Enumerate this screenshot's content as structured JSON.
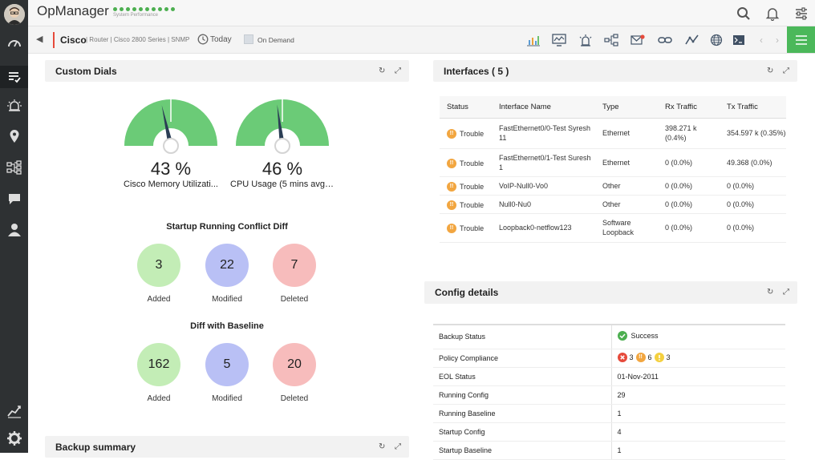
{
  "app": {
    "name": "OpManager",
    "subtitle": "System Performance"
  },
  "device": {
    "name": "Cisco",
    "meta": "| Router | Cisco 2800 Series | SNMP",
    "time_label": "Today",
    "poll_label": "On Demand"
  },
  "custom_dials": {
    "title": "Custom Dials",
    "gauges": [
      {
        "value": "43 %",
        "caption": "Cisco Memory Utilizati...",
        "percent": 43
      },
      {
        "value": "46 %",
        "caption": "CPU Usage (5 mins avg) ...",
        "percent": 46
      }
    ],
    "startup_diff": {
      "title": "Startup Running Conflict Diff",
      "items": [
        {
          "value": "3",
          "label": "Added"
        },
        {
          "value": "22",
          "label": "Modified"
        },
        {
          "value": "7",
          "label": "Deleted"
        }
      ]
    },
    "baseline_diff": {
      "title": "Diff with Baseline",
      "items": [
        {
          "value": "162",
          "label": "Added"
        },
        {
          "value": "5",
          "label": "Modified"
        },
        {
          "value": "20",
          "label": "Deleted"
        }
      ]
    }
  },
  "backup_summary": {
    "title": "Backup summary"
  },
  "interfaces": {
    "title": "Interfaces ( 5 )",
    "columns": [
      "Status",
      "Interface Name",
      "Type",
      "Rx Traffic",
      "Tx Traffic"
    ],
    "rows": [
      {
        "status": "Trouble",
        "name": "FastEthernet0/0-Test Syresh 11",
        "type": "Ethernet",
        "rx": "398.271 k (0.4%)",
        "tx": "354.597 k (0.35%)"
      },
      {
        "status": "Trouble",
        "name": "FastEthernet0/1-Test Suresh 1",
        "type": "Ethernet",
        "rx": "0 (0.0%)",
        "tx": "49.368 (0.0%)"
      },
      {
        "status": "Trouble",
        "name": "VoIP-Null0-Vo0",
        "type": "Other",
        "rx": "0 (0.0%)",
        "tx": "0 (0.0%)"
      },
      {
        "status": "Trouble",
        "name": "Null0-Nu0",
        "type": "Other",
        "rx": "0 (0.0%)",
        "tx": "0 (0.0%)"
      },
      {
        "status": "Trouble",
        "name": "Loopback0-netflow123",
        "type": "Software Loopback",
        "rx": "0 (0.0%)",
        "tx": "0 (0.0%)"
      }
    ]
  },
  "config": {
    "title": "Config details",
    "rows": [
      {
        "label": "Backup Status",
        "value": "Success"
      },
      {
        "label": "Policy Compliance",
        "critical": "3",
        "major": "6",
        "warning": "3"
      },
      {
        "label": "EOL Status",
        "value": "01-Nov-2011"
      },
      {
        "label": "Running Config",
        "value": "29"
      },
      {
        "label": "Running Baseline",
        "value": "1"
      },
      {
        "label": "Startup Config",
        "value": "4"
      },
      {
        "label": "Startup Baseline",
        "value": "1"
      }
    ]
  },
  "colors": {
    "accent_green": "#4bb85a",
    "gauge_green": "#6bcb77",
    "needle": "#2b3e55",
    "trouble": "#f2a640",
    "error": "#e64a3b",
    "sidebar": "#2e3133"
  }
}
